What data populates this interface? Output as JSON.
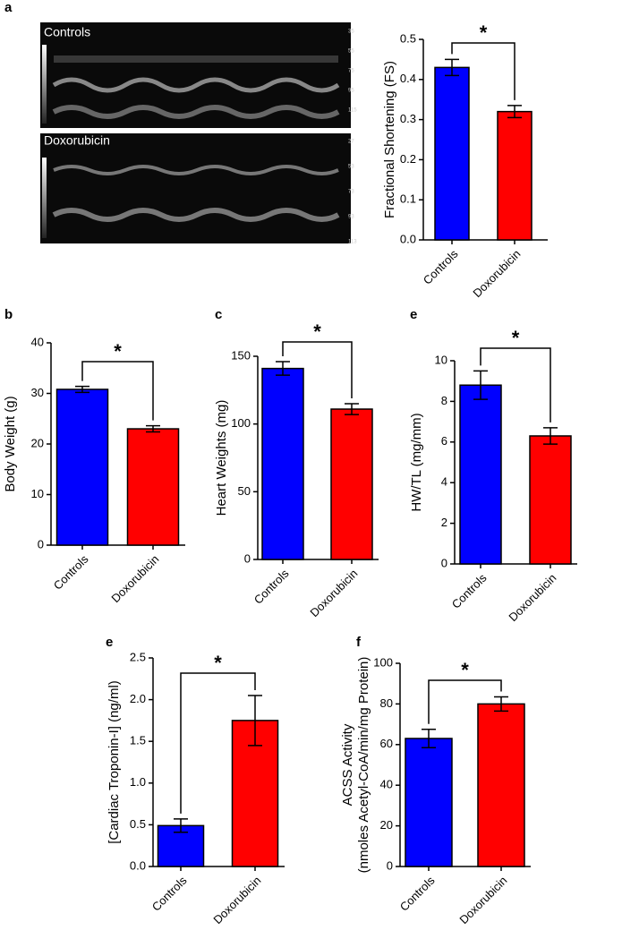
{
  "figure_a": {
    "panel_label": "a",
    "images": [
      {
        "label": "Controls",
        "scale": [
          "35",
          "55",
          "75",
          "95",
          "115"
        ]
      },
      {
        "label": "Doxorubicin",
        "scale": [
          "27",
          "53",
          "73",
          "93",
          "113"
        ]
      }
    ]
  },
  "chart_data": [
    {
      "type": "bar",
      "ylabel": "Fractional  Shortening  (FS)",
      "annotation": "*",
      "categories": [
        "Controls",
        "Doxorubicin"
      ],
      "values": [
        0.43,
        0.32
      ],
      "errors": [
        0.02,
        0.015
      ],
      "colors": [
        "#0000ff",
        "#ff0000"
      ],
      "ylim": [
        0,
        0.5
      ],
      "yticks": [
        {
          "value": 0,
          "label": "0.0"
        },
        0.1,
        0.2,
        0.3,
        0.4,
        0.5
      ]
    },
    {
      "type": "bar",
      "panel_label": "b",
      "ylabel": "Body  Weight (g)",
      "annotation": "*",
      "categories": [
        "Controls",
        "Doxorubicin"
      ],
      "values": [
        30.8,
        23
      ],
      "errors": [
        0.6,
        0.6
      ],
      "colors": [
        "#0000ff",
        "#ff0000"
      ],
      "ylim": [
        0,
        40
      ],
      "yticks": [
        0,
        10,
        20,
        30,
        40
      ]
    },
    {
      "type": "bar",
      "panel_label": "c",
      "ylabel": "Heart  Weights  (mg)",
      "annotation": "*",
      "categories": [
        "Controls",
        "Doxorubicin"
      ],
      "values": [
        141,
        111
      ],
      "errors": [
        5,
        4
      ],
      "colors": [
        "#0000ff",
        "#ff0000"
      ],
      "ylim": [
        0,
        150
      ],
      "yticks": [
        0,
        50,
        100,
        150
      ]
    },
    {
      "type": "bar",
      "panel_label": "e",
      "ylabel": "HW/TL (mg/mm)",
      "annotation": "*",
      "categories": [
        "Controls",
        "Doxorubicin"
      ],
      "values": [
        8.8,
        6.3
      ],
      "errors": [
        0.7,
        0.4
      ],
      "colors": [
        "#0000ff",
        "#ff0000"
      ],
      "ylim": [
        0,
        10
      ],
      "yticks": [
        0,
        2,
        4,
        6,
        8,
        10
      ]
    },
    {
      "type": "bar",
      "panel_label": "e",
      "ylabel": "[Cardiac Troponin-I] (ng/ml)",
      "annotation": "*",
      "categories": [
        "Controls",
        "Doxorubicin"
      ],
      "values": [
        0.49,
        1.75
      ],
      "errors": [
        0.08,
        0.3
      ],
      "colors": [
        "#0000ff",
        "#ff0000"
      ],
      "ylim": [
        0,
        2.5
      ],
      "yticks": [
        {
          "value": 0,
          "label": "0.0"
        },
        0.5,
        {
          "value": 1,
          "label": "1.0"
        },
        1.5,
        {
          "value": 2,
          "label": "2.0"
        },
        2.5
      ]
    },
    {
      "type": "bar",
      "panel_label": "f",
      "ylabel": [
        "ACSS Activity",
        "(nmoles Acetyl-CoA/min/mg Protein)"
      ],
      "annotation": "*",
      "categories": [
        "Controls",
        "Doxorubicin"
      ],
      "values": [
        63,
        80
      ],
      "errors": [
        4.5,
        3.5
      ],
      "colors": [
        "#0000ff",
        "#ff0000"
      ],
      "ylim": [
        0,
        100
      ],
      "yticks": [
        0,
        20,
        40,
        60,
        80,
        100
      ]
    }
  ]
}
